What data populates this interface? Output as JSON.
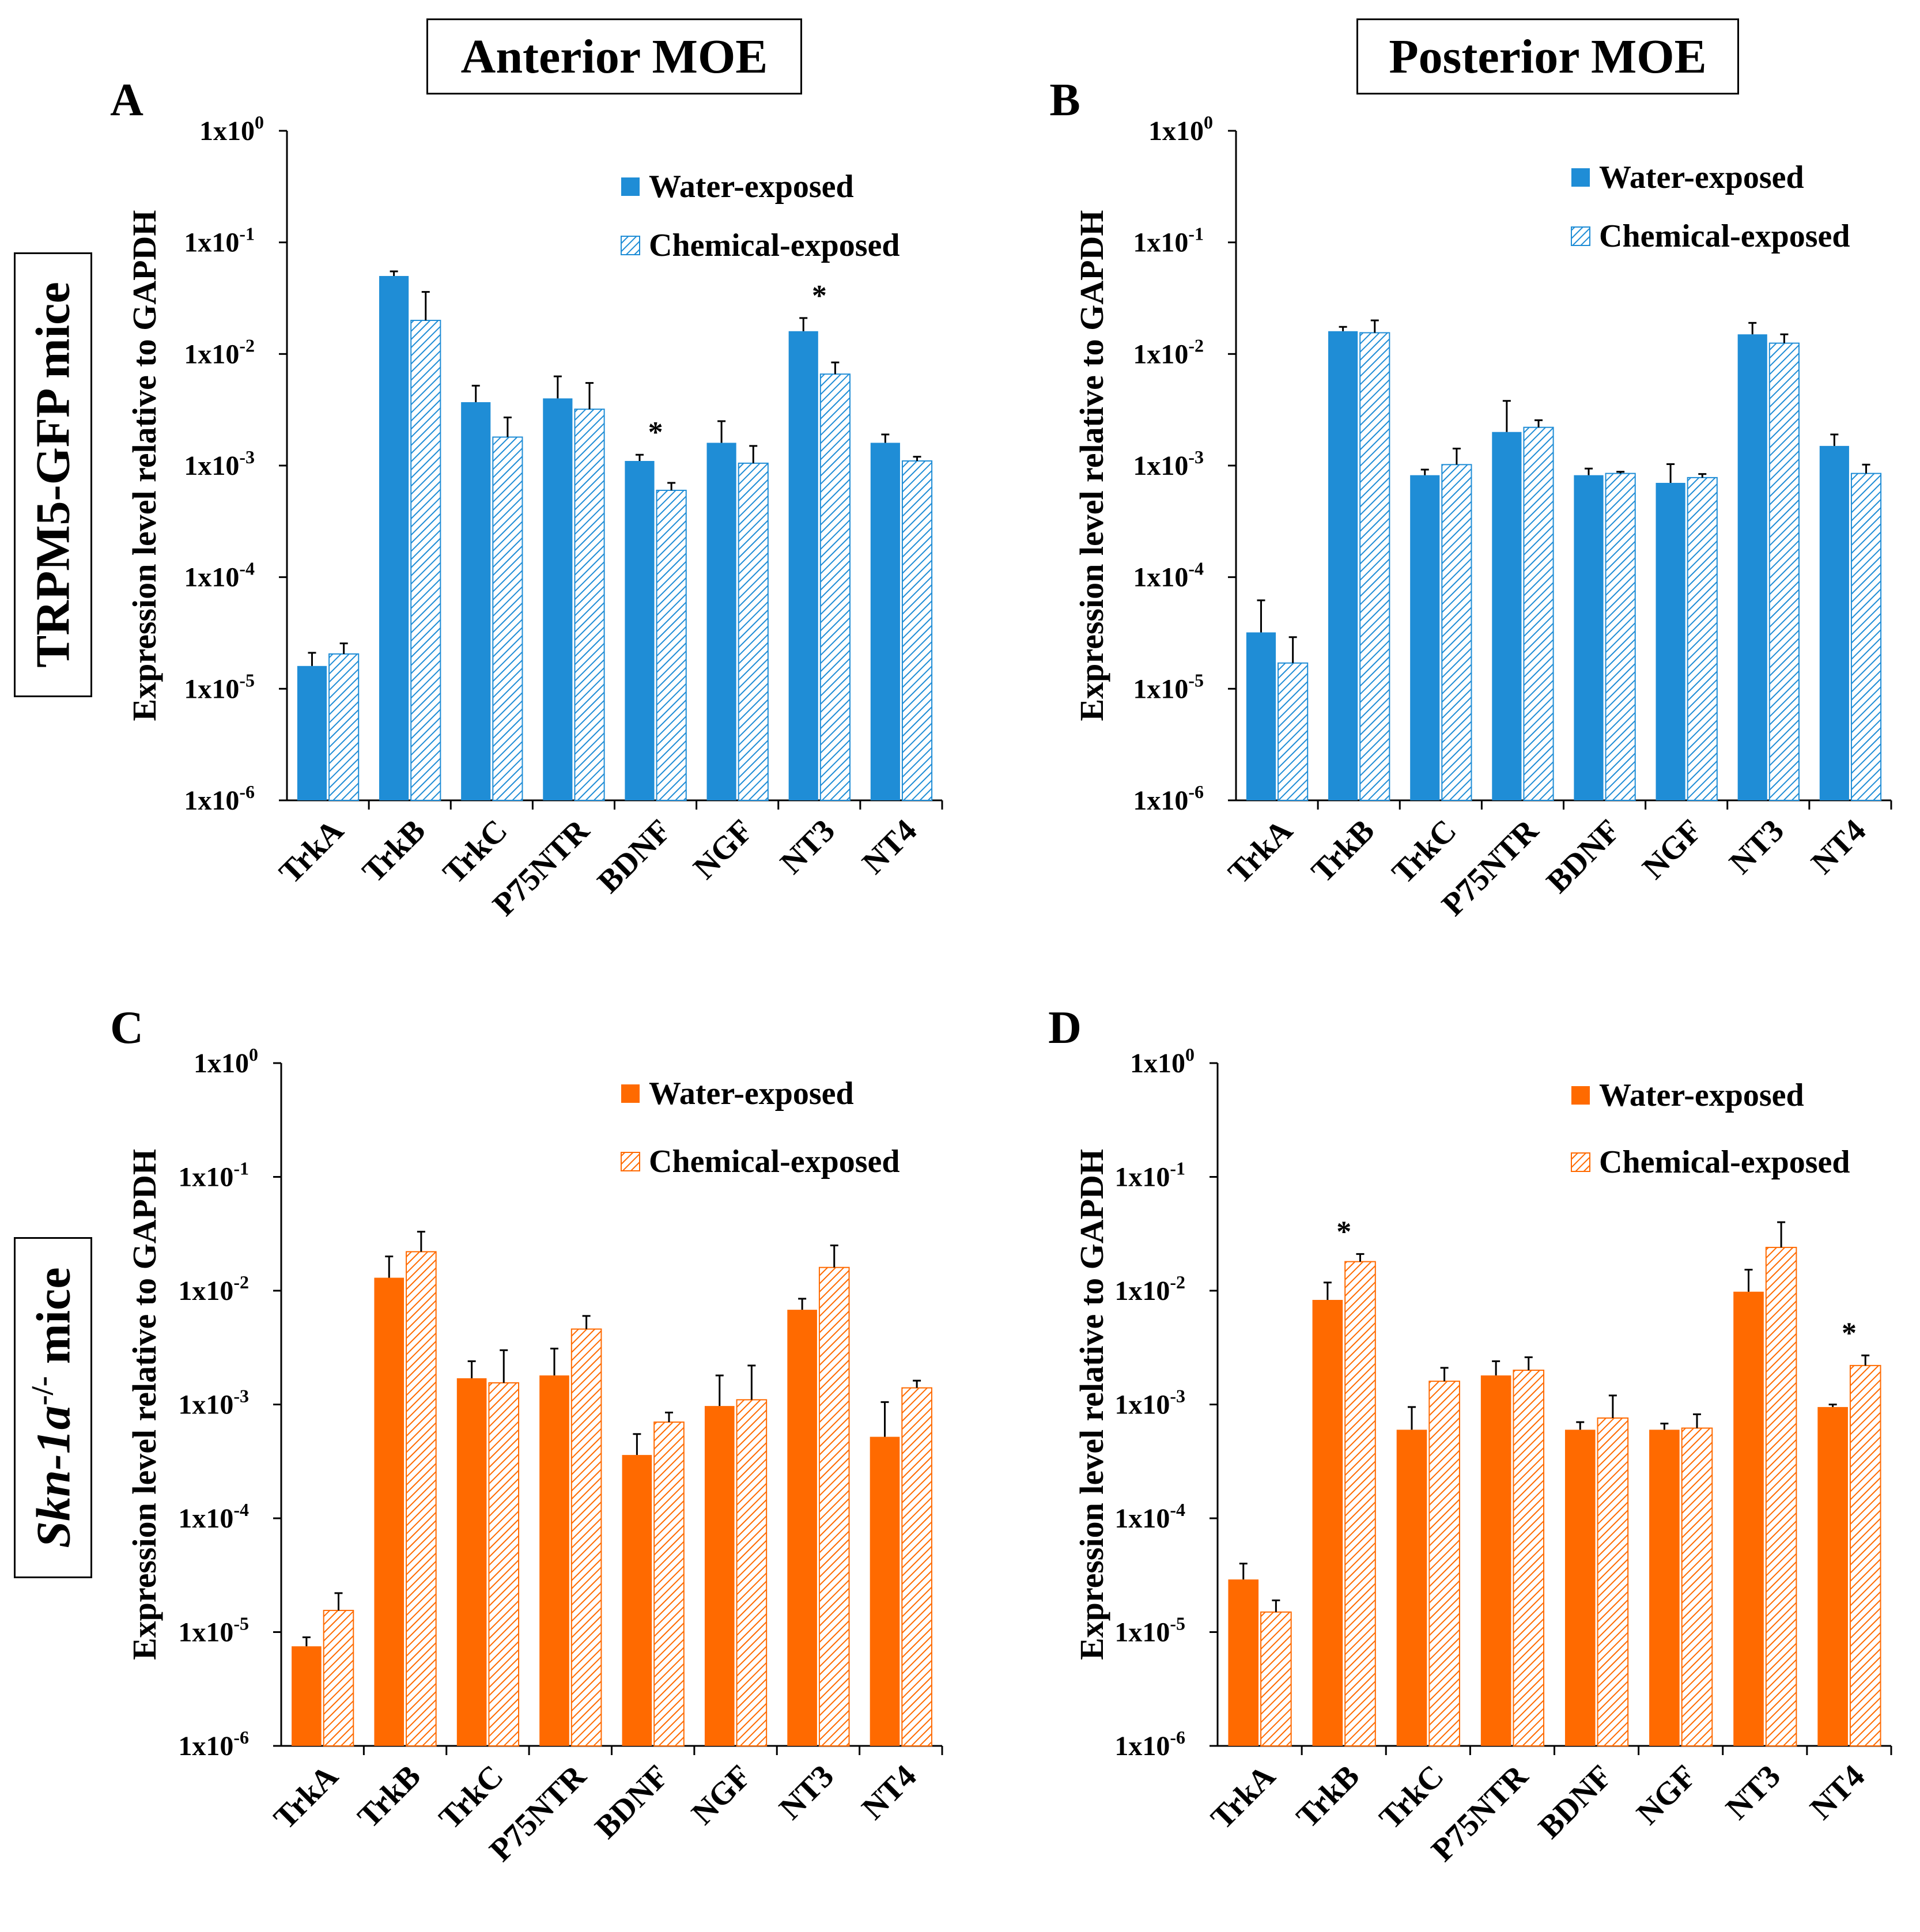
{
  "headers": {
    "anterior": "Anterior MOE",
    "posterior": "Posterior MOE"
  },
  "row_labels": {
    "top": "TRPM5-GFP mice",
    "bottom_italic": "Skn-1a",
    "bottom_sup": "-/-",
    "bottom_rest": " mice"
  },
  "colors": {
    "blue": "#1f8dd6",
    "orange": "#ff6a00"
  },
  "chart_data": [
    {
      "type": "bar",
      "panel": "A",
      "color": "blue",
      "title": "",
      "xlabel": "",
      "ylabel": "Expression level relative to GAPDH",
      "yscale": "log",
      "ylim": [
        1e-06,
        1
      ],
      "ytick_labels": [
        {
          "base": "1x10",
          "exp": "0"
        },
        {
          "base": "1x10",
          "exp": "-1"
        },
        {
          "base": "1x10",
          "exp": "-2"
        },
        {
          "base": "1x10",
          "exp": "-3"
        },
        {
          "base": "1x10",
          "exp": "-4"
        },
        {
          "base": "1x10",
          "exp": "-5"
        },
        {
          "base": "1x10",
          "exp": "-6"
        }
      ],
      "categories": [
        "TrkA",
        "TrkB",
        "TrkC",
        "P75NTR",
        "BDNF",
        "NGF",
        "NT3",
        "NT4"
      ],
      "legend_position": "top-right",
      "series": [
        {
          "name": "Water-exposed",
          "pattern": "solid",
          "values": [
            1.6e-05,
            0.05,
            0.0037,
            0.004,
            0.0011,
            0.0016,
            0.016,
            0.0016
          ],
          "errors": [
            2.1e-05,
            0.055,
            0.0052,
            0.0063,
            0.00125,
            0.0025,
            0.021,
            0.0019
          ]
        },
        {
          "name": "Chemical-exposed",
          "pattern": "hatched",
          "values": [
            2.05e-05,
            0.02,
            0.0018,
            0.0032,
            0.0006,
            0.00105,
            0.0066,
            0.0011
          ],
          "errors": [
            2.55e-05,
            0.036,
            0.0027,
            0.0055,
            0.0007,
            0.0015,
            0.0084,
            0.0012
          ]
        }
      ],
      "significance": [
        {
          "category": "BDNF",
          "label": "*"
        },
        {
          "category": "NT3",
          "label": "*"
        }
      ]
    },
    {
      "type": "bar",
      "panel": "B",
      "color": "blue",
      "title": "",
      "xlabel": "",
      "ylabel": "Expression level relative to GAPDH",
      "yscale": "log",
      "ylim": [
        1e-06,
        1
      ],
      "ytick_labels": [
        {
          "base": "1x10",
          "exp": "0"
        },
        {
          "base": "1x10",
          "exp": "-1"
        },
        {
          "base": "1x10",
          "exp": "-2"
        },
        {
          "base": "1x10",
          "exp": "-3"
        },
        {
          "base": "1x10",
          "exp": "-4"
        },
        {
          "base": "1x10",
          "exp": "-5"
        },
        {
          "base": "1x10",
          "exp": "-6"
        }
      ],
      "categories": [
        "TrkA",
        "TrkB",
        "TrkC",
        "P75NTR",
        "BDNF",
        "NGF",
        "NT3",
        "NT4"
      ],
      "legend_position": "top-right",
      "series": [
        {
          "name": "Water-exposed",
          "pattern": "solid",
          "values": [
            3.2e-05,
            0.016,
            0.00082,
            0.002,
            0.00082,
            0.0007,
            0.015,
            0.0015
          ],
          "errors": [
            6.2e-05,
            0.0175,
            0.00092,
            0.0038,
            0.00094,
            0.00103,
            0.019,
            0.0019
          ]
        },
        {
          "name": "Chemical-exposed",
          "pattern": "hatched",
          "values": [
            1.7e-05,
            0.0155,
            0.00102,
            0.0022,
            0.00085,
            0.00078,
            0.0125,
            0.00085
          ],
          "errors": [
            2.9e-05,
            0.02,
            0.00142,
            0.00255,
            0.00088,
            0.00084,
            0.015,
            0.00102
          ]
        }
      ],
      "significance": []
    },
    {
      "type": "bar",
      "panel": "C",
      "color": "orange",
      "title": "",
      "xlabel": "",
      "ylabel": "Expression level relative to GAPDH",
      "yscale": "log",
      "ylim": [
        1e-06,
        1
      ],
      "ytick_labels": [
        {
          "base": "1x10",
          "exp": "0"
        },
        {
          "base": "1x10",
          "exp": "-1"
        },
        {
          "base": "1x10",
          "exp": "-2"
        },
        {
          "base": "1x10",
          "exp": "-3"
        },
        {
          "base": "1x10",
          "exp": "-4"
        },
        {
          "base": "1x10",
          "exp": "-5"
        },
        {
          "base": "1x10",
          "exp": "-6"
        }
      ],
      "categories": [
        "TrkA",
        "TrkB",
        "TrkC",
        "P75NTR",
        "BDNF",
        "NGF",
        "NT3",
        "NT4"
      ],
      "legend_position": "top-right",
      "series": [
        {
          "name": "Water-exposed",
          "pattern": "solid",
          "values": [
            7.5e-06,
            0.013,
            0.0017,
            0.0018,
            0.00036,
            0.00097,
            0.0068,
            0.00052
          ],
          "errors": [
            9e-06,
            0.02,
            0.0024,
            0.0031,
            0.00055,
            0.0018,
            0.0085,
            0.00105
          ]
        },
        {
          "name": "Chemical-exposed",
          "pattern": "hatched",
          "values": [
            1.55e-05,
            0.022,
            0.00155,
            0.0046,
            0.0007,
            0.0011,
            0.016,
            0.0014
          ],
          "errors": [
            2.2e-05,
            0.033,
            0.003,
            0.006,
            0.00085,
            0.0022,
            0.025,
            0.00162
          ]
        }
      ],
      "significance": []
    },
    {
      "type": "bar",
      "panel": "D",
      "color": "orange",
      "title": "",
      "xlabel": "",
      "ylabel": "Expression level relative to GAPDH",
      "yscale": "log",
      "ylim": [
        1e-06,
        1
      ],
      "ytick_labels": [
        {
          "base": "1x10",
          "exp": "0"
        },
        {
          "base": "1x10",
          "exp": "-1"
        },
        {
          "base": "1x10",
          "exp": "-2"
        },
        {
          "base": "1x10",
          "exp": "-3"
        },
        {
          "base": "1x10",
          "exp": "-4"
        },
        {
          "base": "1x10",
          "exp": "-5"
        },
        {
          "base": "1x10",
          "exp": "-6"
        }
      ],
      "categories": [
        "TrkA",
        "TrkB",
        "TrkC",
        "P75NTR",
        "BDNF",
        "NGF",
        "NT3",
        "NT4"
      ],
      "legend_position": "top-right",
      "series": [
        {
          "name": "Water-exposed",
          "pattern": "solid",
          "values": [
            2.9e-05,
            0.0083,
            0.0006,
            0.0018,
            0.0006,
            0.0006,
            0.0098,
            0.00095
          ],
          "errors": [
            4e-05,
            0.0118,
            0.00095,
            0.0024,
            0.0007,
            0.00068,
            0.0153,
            0.001
          ]
        },
        {
          "name": "Chemical-exposed",
          "pattern": "hatched",
          "values": [
            1.5e-05,
            0.018,
            0.0016,
            0.002,
            0.00076,
            0.00062,
            0.024,
            0.0022
          ],
          "errors": [
            1.9e-05,
            0.021,
            0.0021,
            0.0026,
            0.0012,
            0.00082,
            0.04,
            0.0027
          ]
        }
      ],
      "significance": [
        {
          "category": "TrkB",
          "label": "*"
        },
        {
          "category": "NT4",
          "label": "*"
        }
      ]
    }
  ]
}
